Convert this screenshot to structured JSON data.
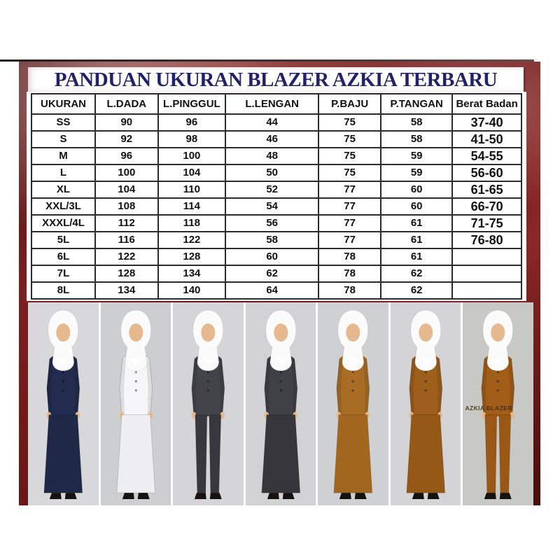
{
  "title": "PANDUAN UKURAN BLAZER AZKIA TERBARU",
  "table": {
    "headers": [
      "UKURAN",
      "L.DADA",
      "L.PINGGUL",
      "L.LENGAN",
      "P.BAJU",
      "P.TANGAN",
      "Berat Badan"
    ],
    "rows": [
      [
        "SS",
        "90",
        "96",
        "44",
        "75",
        "58",
        "37-40"
      ],
      [
        "S",
        "92",
        "98",
        "46",
        "75",
        "58",
        "41-50"
      ],
      [
        "M",
        "96",
        "100",
        "48",
        "75",
        "59",
        "54-55"
      ],
      [
        "L",
        "100",
        "104",
        "50",
        "75",
        "59",
        "56-60"
      ],
      [
        "XL",
        "104",
        "110",
        "52",
        "77",
        "60",
        "61-65"
      ],
      [
        "XXL/3L",
        "108",
        "114",
        "54",
        "77",
        "60",
        "66-70"
      ],
      [
        "XXXL/4L",
        "112",
        "118",
        "56",
        "77",
        "61",
        "71-75"
      ],
      [
        "5L",
        "116",
        "122",
        "58",
        "77",
        "61",
        "76-80"
      ],
      [
        "6L",
        "122",
        "128",
        "60",
        "78",
        "61",
        ""
      ],
      [
        "7L",
        "128",
        "134",
        "62",
        "78",
        "62",
        ""
      ],
      [
        "8L",
        "134",
        "140",
        "64",
        "78",
        "62",
        ""
      ]
    ]
  },
  "colors": {
    "frame_maroon": "#6a1616",
    "title_navy": "#22216b",
    "table_border": "#2b2b2b",
    "skin": "#e6b88d",
    "hijab": "#fbfbfb",
    "shoes": "#15120f"
  },
  "watermark_label": "AZKIA BLAZER",
  "models": [
    {
      "name": "navy-skirt-suit",
      "bg": "#d8d8da",
      "jacket": "#232c4e",
      "bottom": "#1f2847",
      "bottom_type": "skirt"
    },
    {
      "name": "white-skirt-suit",
      "bg": "#cdced2",
      "jacket": "#f6f6f8",
      "bottom": "#eeeef2",
      "bottom_type": "skirt"
    },
    {
      "name": "charcoal-pants-suit",
      "bg": "#d5d5d7",
      "jacket": "#43434a",
      "bottom": "#37373d",
      "bottom_type": "pants"
    },
    {
      "name": "charcoal-skirt-suit",
      "bg": "#d2d2d4",
      "jacket": "#404047",
      "bottom": "#36363c",
      "bottom_type": "skirt"
    },
    {
      "name": "camel-skirt-suit",
      "bg": "#cfd0d2",
      "jacket": "#a96d25",
      "bottom": "#a2661f",
      "bottom_type": "skirt"
    },
    {
      "name": "brown-skirt-suit",
      "bg": "#d4d4d6",
      "jacket": "#9e5e1c",
      "bottom": "#965817",
      "bottom_type": "skirt"
    },
    {
      "name": "brown-pants-suit",
      "bg": "#c8c9c5",
      "jacket": "#a25d18",
      "bottom": "#9a5715",
      "bottom_type": "pants",
      "label": "AZKIA BLAZER"
    }
  ]
}
